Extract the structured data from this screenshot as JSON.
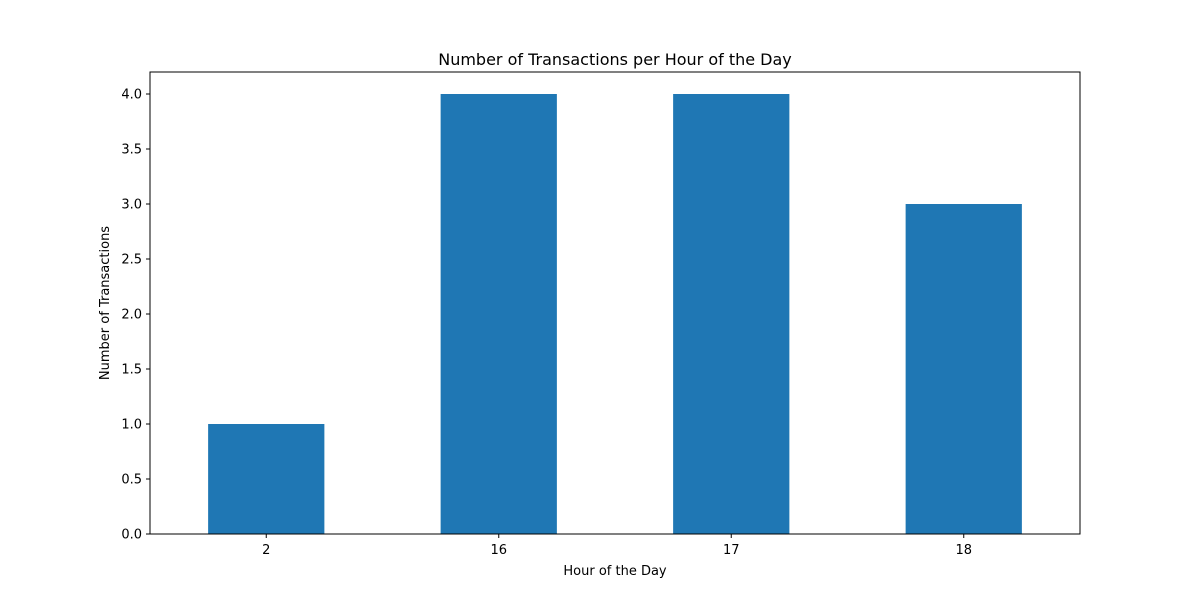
{
  "chart_data": {
    "type": "bar",
    "title": "Number of Transactions per Hour of the Day",
    "xlabel": "Hour of the Day",
    "ylabel": "Number of Transactions",
    "categories": [
      "2",
      "16",
      "17",
      "18"
    ],
    "values": [
      1,
      4,
      4,
      3
    ],
    "ylim": [
      0,
      4.2
    ],
    "yticks": [
      0.0,
      0.5,
      1.0,
      1.5,
      2.0,
      2.5,
      3.0,
      3.5,
      4.0
    ],
    "ytick_labels": [
      "0.0",
      "0.5",
      "1.0",
      "1.5",
      "2.0",
      "2.5",
      "3.0",
      "3.5",
      "4.0"
    ],
    "grid": false,
    "legend": "none",
    "bar_color": "#1f77b4"
  }
}
